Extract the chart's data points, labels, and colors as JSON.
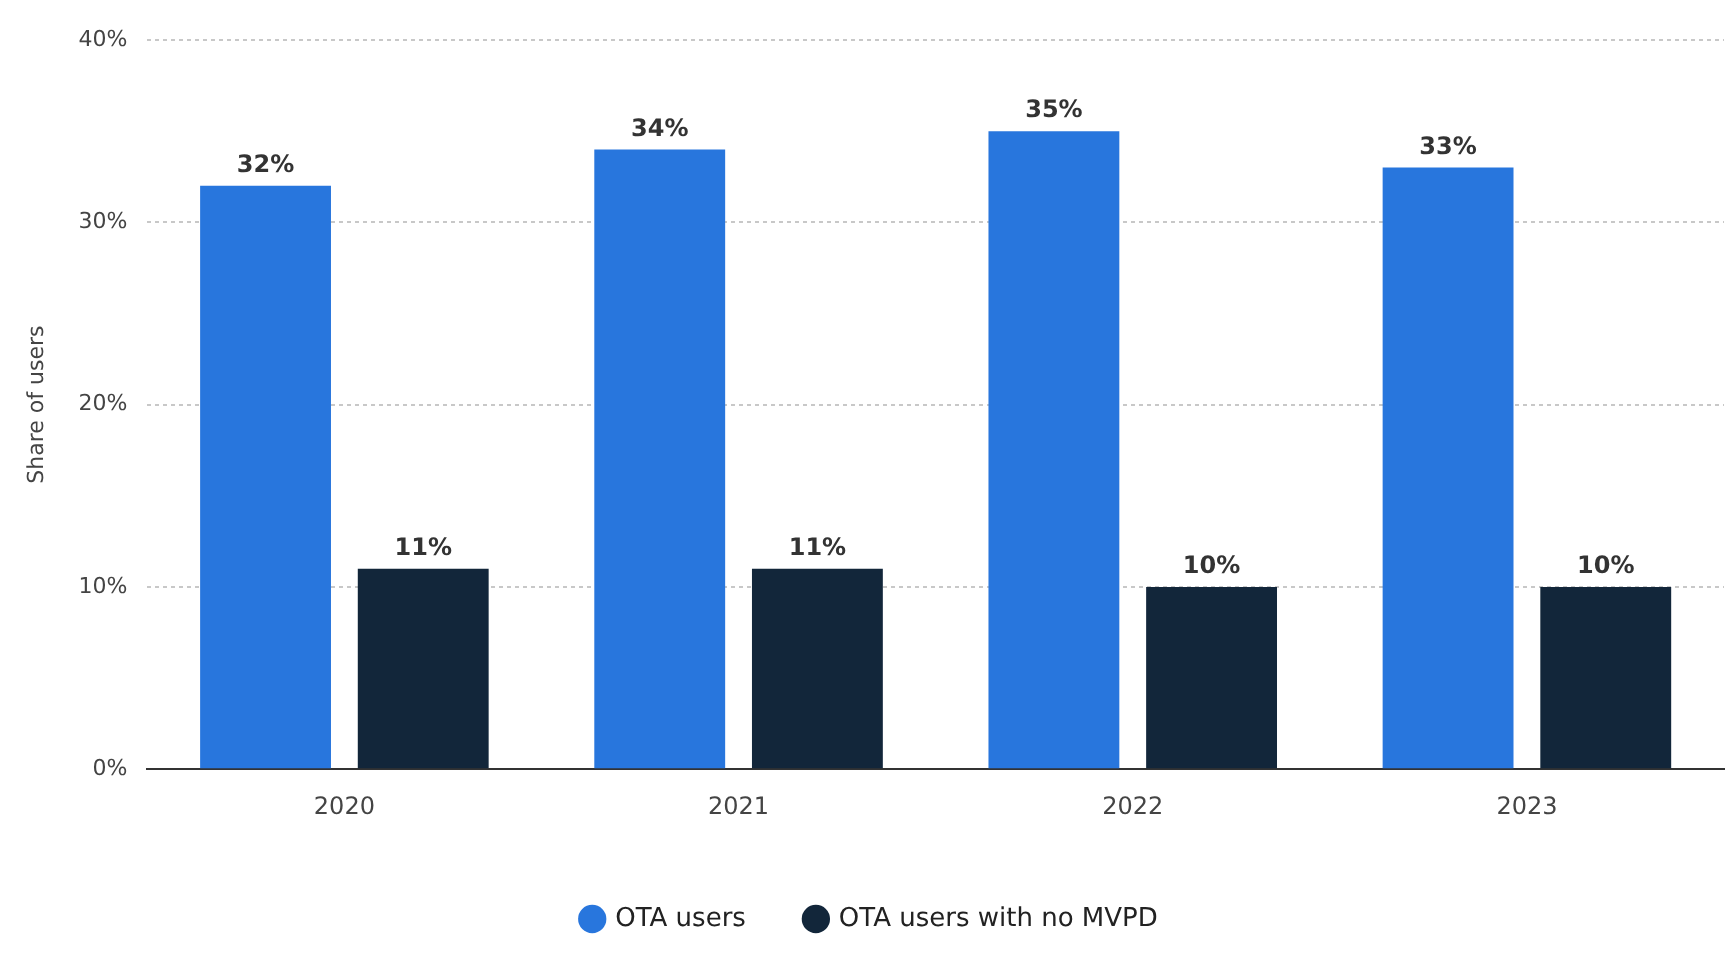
{
  "chart_data": {
    "type": "bar",
    "ylabel": "Share of users",
    "categories": [
      "2020",
      "2021",
      "2022",
      "2023"
    ],
    "series": [
      {
        "name": "OTA users",
        "color": "#2876dd",
        "values": [
          32,
          34,
          35,
          33
        ],
        "value_labels": [
          "32%",
          "34%",
          "35%",
          "33%"
        ]
      },
      {
        "name": "OTA users with no MVPD",
        "color": "#12263a",
        "values": [
          11,
          11,
          10,
          10
        ],
        "value_labels": [
          "11%",
          "11%",
          "10%",
          "10%"
        ]
      }
    ],
    "ylim": [
      0,
      40
    ],
    "yticks": [
      {
        "value": 0,
        "label": "0%"
      },
      {
        "value": 10,
        "label": "10%"
      },
      {
        "value": 20,
        "label": "20%"
      },
      {
        "value": 30,
        "label": "30%"
      },
      {
        "value": 40,
        "label": "40%"
      }
    ],
    "grid": "y",
    "legend": "bottom"
  }
}
